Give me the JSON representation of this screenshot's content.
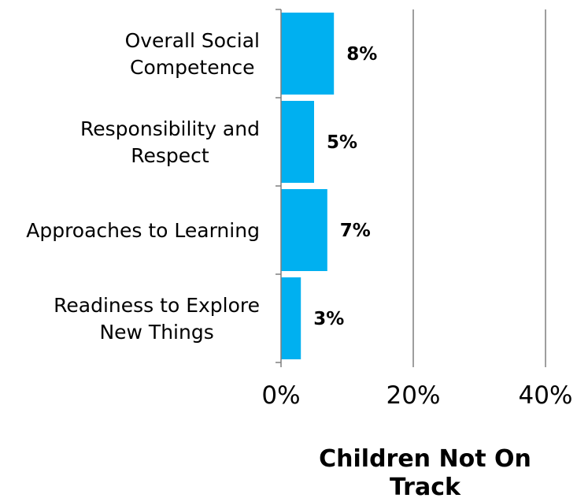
{
  "chart_data": {
    "type": "bar",
    "orientation": "horizontal",
    "categories": [
      [
        "Overall Social",
        "Competence"
      ],
      [
        "Responsibility and",
        "Respect"
      ],
      [
        "Approaches to Learning"
      ],
      [
        "Readiness to Explore",
        "New Things"
      ]
    ],
    "values": [
      8,
      5,
      7,
      3
    ],
    "value_labels": [
      "8%",
      "5%",
      "7%",
      "3%"
    ],
    "xlim": [
      0,
      40
    ],
    "xticks": [
      0,
      20,
      40
    ],
    "xtick_labels": [
      "0%",
      "20%",
      "40%"
    ],
    "xlabel": [
      "Children Not On",
      "Track"
    ],
    "title": "",
    "grid": "vertical",
    "bar_color": "#00B0F0",
    "grid_color": "#7f7f7f"
  }
}
